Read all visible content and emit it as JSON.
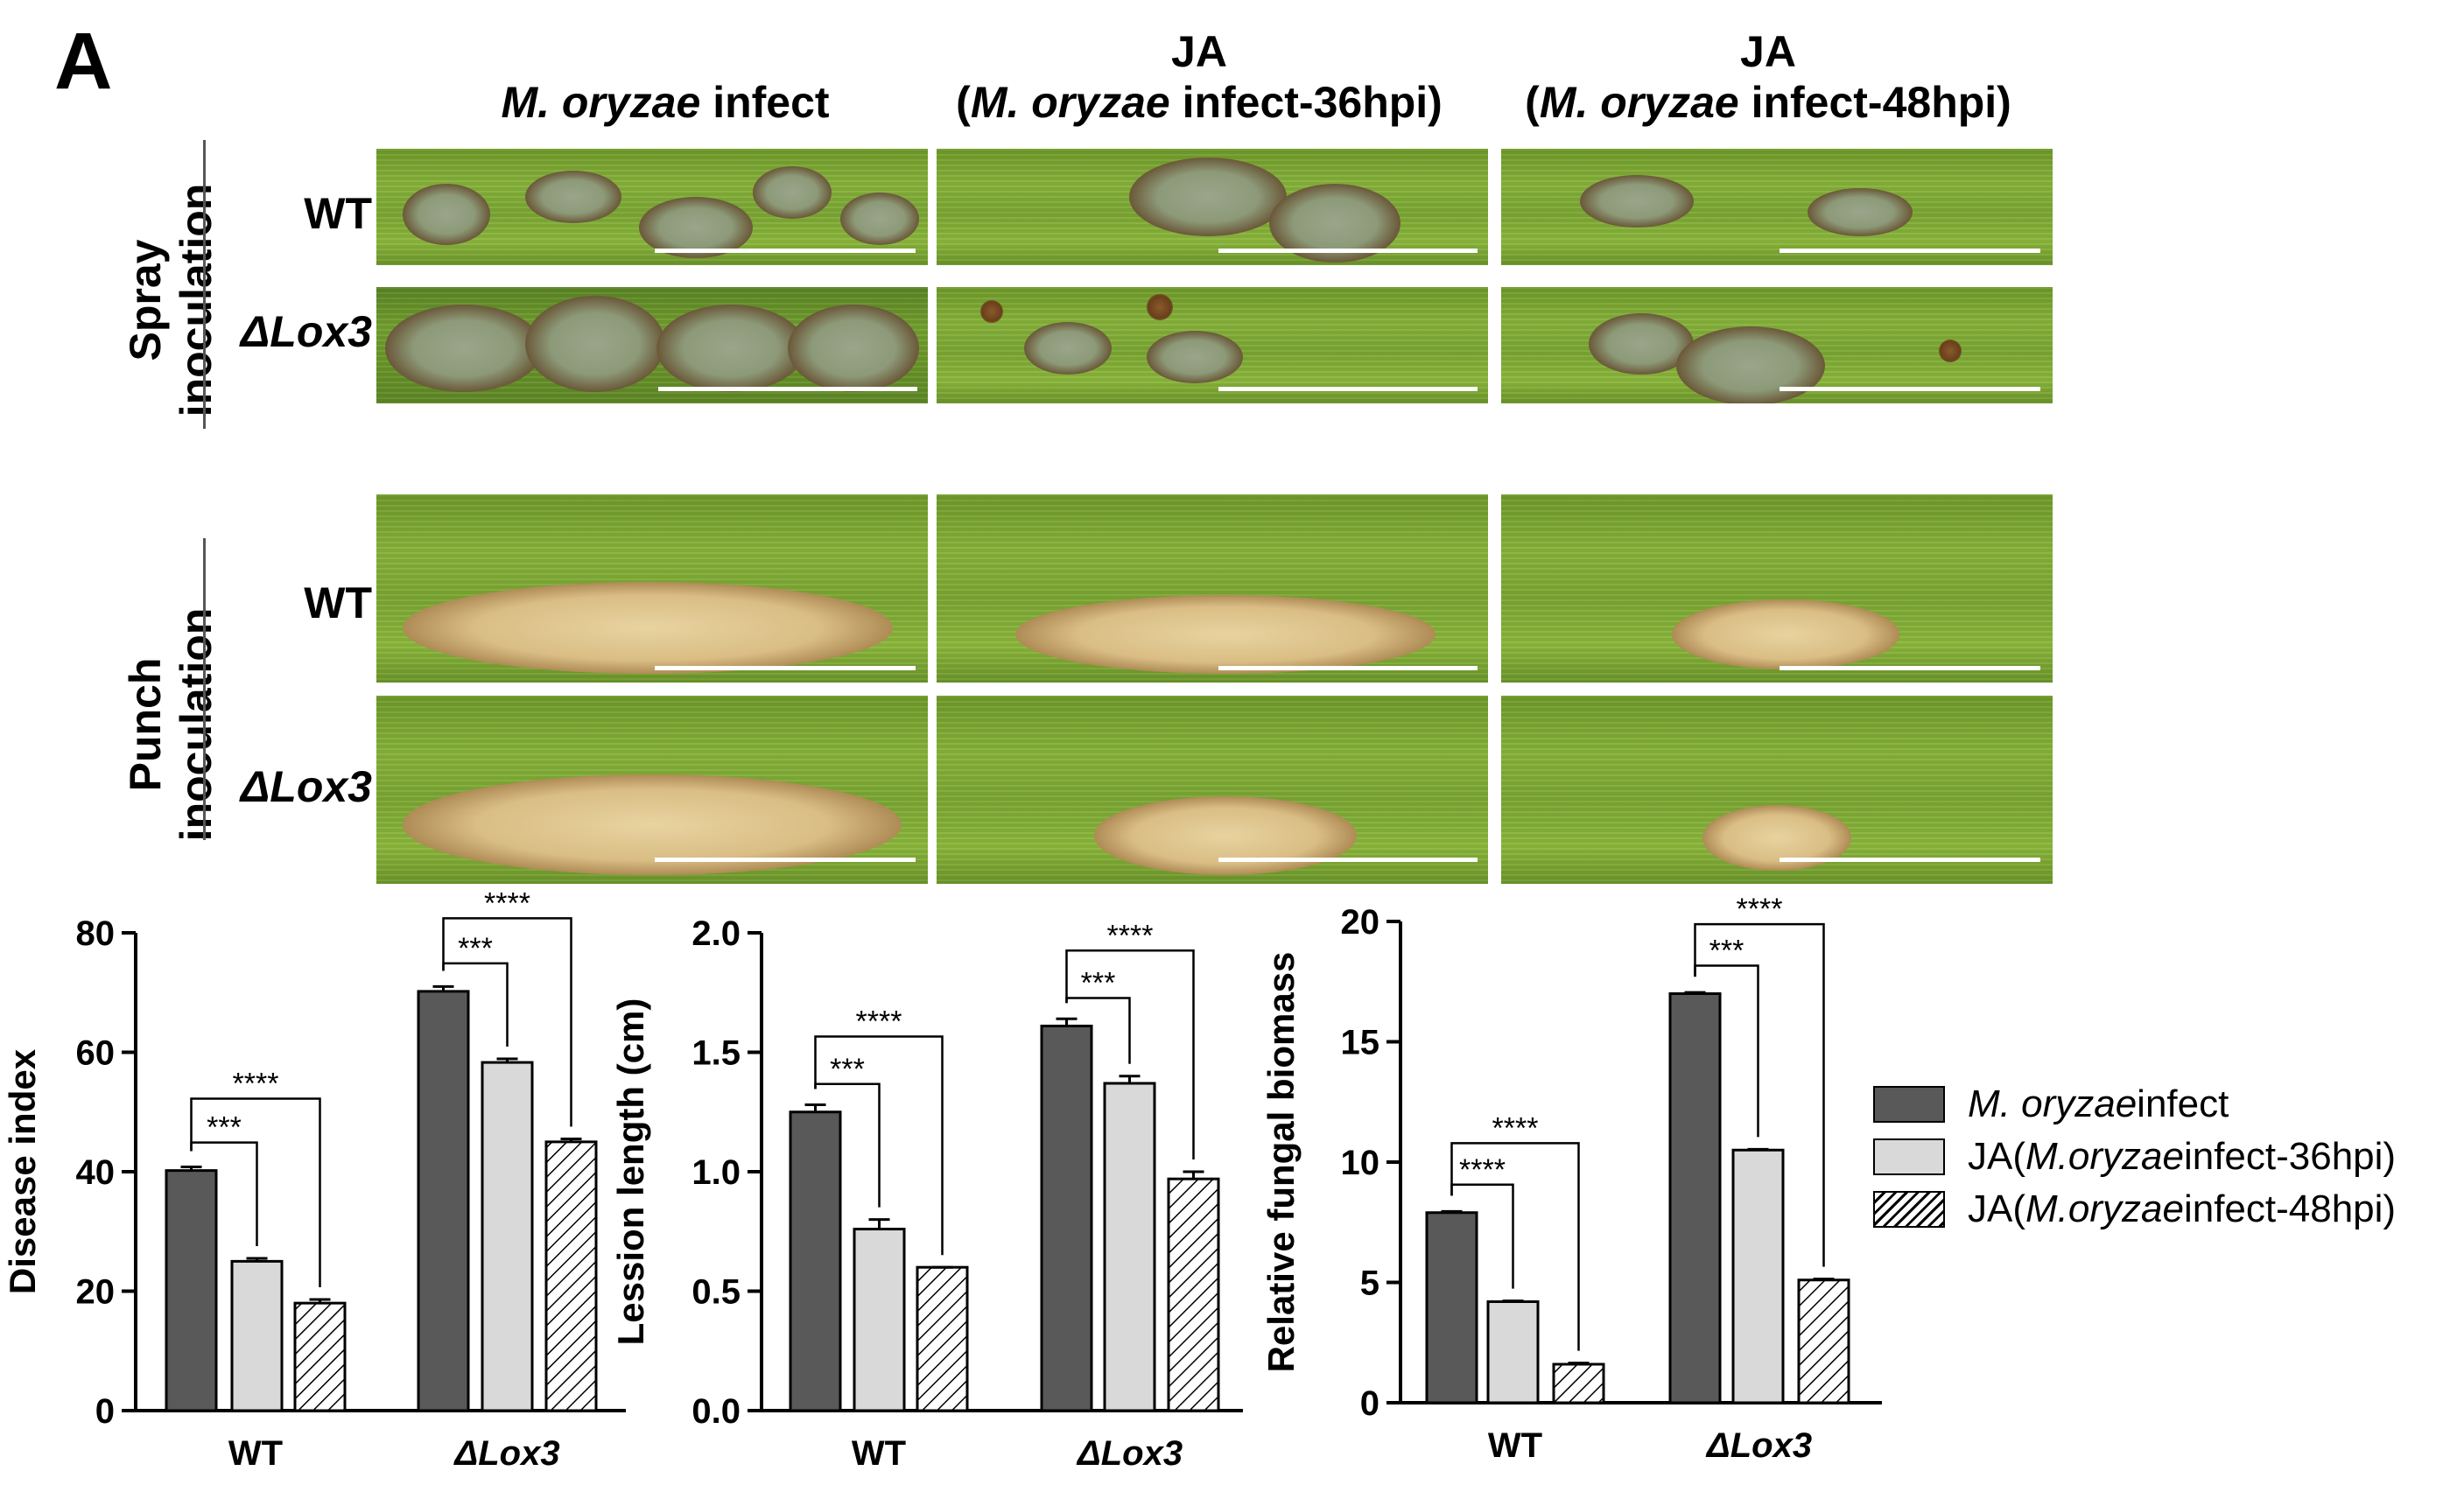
{
  "panel_label": "A",
  "figure_header": {
    "columns": [
      {
        "top": "",
        "pre": "",
        "italic": "M. oryzae",
        "post": " infect"
      },
      {
        "top": "JA",
        "pre": "(",
        "italic": "M. oryzae",
        "post": " infect-36hpi)"
      },
      {
        "top": "JA",
        "pre": "(",
        "italic": "M. oryzae",
        "post": " infect-48hpi)"
      }
    ],
    "groups": [
      {
        "line1": "Spray",
        "line2": "inoculation"
      },
      {
        "line1": "Punch",
        "line2": "inoculation"
      }
    ],
    "rows": [
      "WT",
      "ΔLox3",
      "WT",
      "ΔLox3"
    ]
  },
  "legend": [
    {
      "pre": "",
      "italic": "M. oryzae",
      "post": " infect",
      "fill": "#595959"
    },
    {
      "pre": "JA(",
      "italic": "M.oryzae",
      "post": " infect-36hpi)",
      "fill": "#d9d9d9"
    },
    {
      "pre": "JA(",
      "italic": "M.oryzae",
      "post": " infect-48hpi)",
      "fill": "hatch"
    }
  ],
  "colors": {
    "dark": "#595959",
    "light": "#d9d9d9",
    "hatch_bg": "#ffffff",
    "stroke": "#000000"
  },
  "chart_data": [
    {
      "type": "bar",
      "categories": [
        "WT",
        "ΔLox3"
      ],
      "category_italic": [
        false,
        true
      ],
      "ylabel": "Disease index",
      "ylim": [
        0,
        80
      ],
      "yticks": [
        0,
        20,
        40,
        60,
        80
      ],
      "tick_decimals": 0,
      "series": [
        {
          "name": "M. oryzae infect",
          "values": [
            40.2,
            70.2
          ],
          "errors": [
            0.6,
            0.8
          ]
        },
        {
          "name": "JA(M.oryzae infect-36hpi)",
          "values": [
            25.0,
            58.3
          ],
          "errors": [
            0.5,
            0.6
          ]
        },
        {
          "name": "JA(M.oryzae infect-48hpi)",
          "values": [
            18.0,
            45.0
          ],
          "errors": [
            0.6,
            0.5
          ]
        }
      ],
      "significance": [
        {
          "category": 0,
          "from": 0,
          "to": 1,
          "label": "***"
        },
        {
          "category": 0,
          "from": 0,
          "to": 2,
          "label": "****"
        },
        {
          "category": 1,
          "from": 0,
          "to": 1,
          "label": "***"
        },
        {
          "category": 1,
          "from": 0,
          "to": 2,
          "label": "****"
        }
      ]
    },
    {
      "type": "bar",
      "categories": [
        "WT",
        "ΔLox3"
      ],
      "category_italic": [
        false,
        true
      ],
      "ylabel": "Lession length (cm)",
      "ylim": [
        0,
        2.0
      ],
      "yticks": [
        0,
        0.5,
        1.0,
        1.5,
        2.0
      ],
      "tick_decimals": 1,
      "series": [
        {
          "name": "M. oryzae infect",
          "values": [
            1.25,
            1.61
          ],
          "errors": [
            0.03,
            0.03
          ]
        },
        {
          "name": "JA(M.oryzae infect-36hpi)",
          "values": [
            0.76,
            1.37
          ],
          "errors": [
            0.04,
            0.03
          ]
        },
        {
          "name": "JA(M.oryzae infect-48hpi)",
          "values": [
            0.6,
            0.97
          ],
          "errors": [
            0.0,
            0.03
          ]
        }
      ],
      "significance": [
        {
          "category": 0,
          "from": 0,
          "to": 1,
          "label": "***"
        },
        {
          "category": 0,
          "from": 0,
          "to": 2,
          "label": "****"
        },
        {
          "category": 1,
          "from": 0,
          "to": 1,
          "label": "***"
        },
        {
          "category": 1,
          "from": 0,
          "to": 2,
          "label": "****"
        }
      ]
    },
    {
      "type": "bar",
      "categories": [
        "WT",
        "ΔLox3"
      ],
      "category_italic": [
        false,
        true
      ],
      "ylabel": "Relative fungal biomass",
      "ylim": [
        0,
        20
      ],
      "yticks": [
        0,
        5,
        10,
        15,
        20
      ],
      "tick_decimals": 0,
      "series": [
        {
          "name": "M. oryzae infect",
          "values": [
            7.9,
            17.0
          ],
          "errors": [
            0.05,
            0.05
          ]
        },
        {
          "name": "JA(M.oryzae infect-36hpi)",
          "values": [
            4.2,
            10.5
          ],
          "errors": [
            0.03,
            0.03
          ]
        },
        {
          "name": "JA(M.oryzae infect-48hpi)",
          "values": [
            1.6,
            5.1
          ],
          "errors": [
            0.05,
            0.04
          ]
        }
      ],
      "significance": [
        {
          "category": 0,
          "from": 0,
          "to": 1,
          "label": "****"
        },
        {
          "category": 0,
          "from": 0,
          "to": 2,
          "label": "****"
        },
        {
          "category": 1,
          "from": 0,
          "to": 1,
          "label": "***"
        },
        {
          "category": 1,
          "from": 0,
          "to": 2,
          "label": "****"
        }
      ]
    }
  ]
}
